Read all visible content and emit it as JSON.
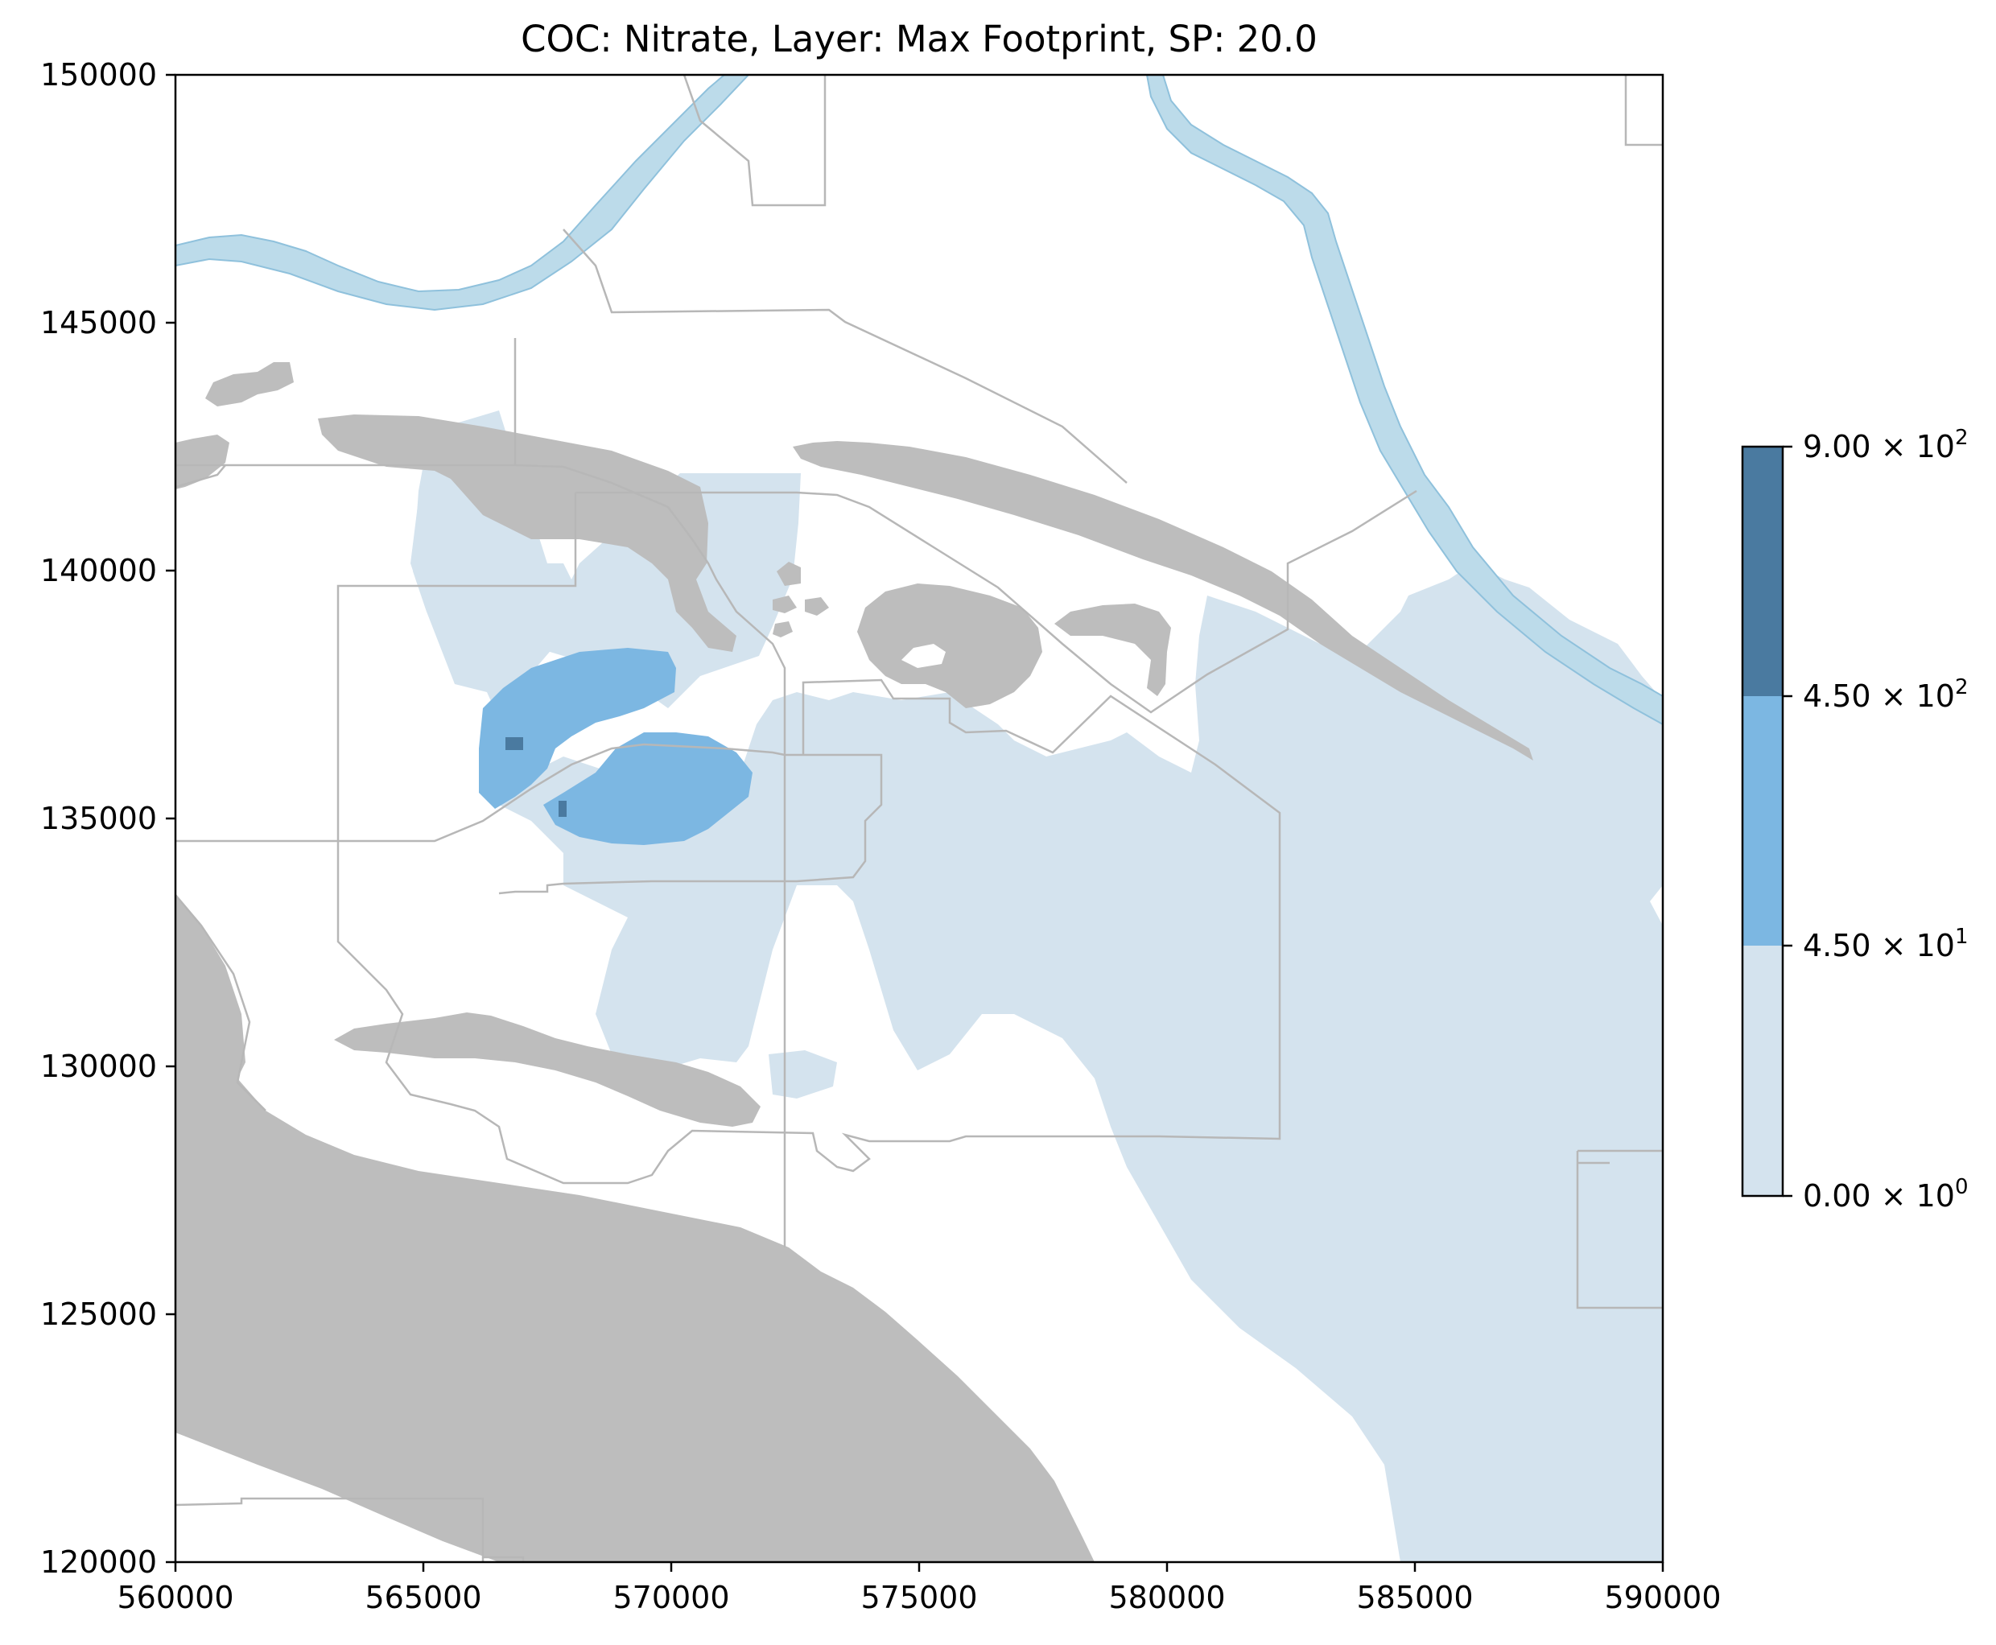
{
  "title": "COC: Nitrate, Layer: Max Footprint, SP: 20.0",
  "map": {
    "x_range": [
      560000,
      590000
    ],
    "y_range": [
      120000,
      150000
    ],
    "x_ticks": [
      "560000",
      "565000",
      "570000",
      "575000",
      "580000",
      "585000",
      "590000"
    ],
    "y_ticks": [
      "150000",
      "145000",
      "140000",
      "135000",
      "130000",
      "125000",
      "120000"
    ]
  },
  "colorbar": {
    "labels": [
      {
        "base": "9.00",
        "exp": "2"
      },
      {
        "base": "4.50",
        "exp": "2"
      },
      {
        "base": "4.50",
        "exp": "1"
      },
      {
        "base": "0.00",
        "exp": "0"
      }
    ],
    "levels": [
      {
        "range": [
          450,
          900
        ],
        "color": "#4a7aa0"
      },
      {
        "range": [
          45,
          450
        ],
        "color": "#7cb7e2"
      },
      {
        "range": [
          0,
          45
        ],
        "color": "#d4e3ee"
      }
    ]
  },
  "colors": {
    "plume_low": "#d4e3ee",
    "plume_mid": "#7cb7e2",
    "plume_high": "#4a7aa0",
    "river": "#bcdbea",
    "river_edge": "#8fc1dc",
    "terrain": "#bdbdbd",
    "boundary": "#b7b7b7"
  }
}
